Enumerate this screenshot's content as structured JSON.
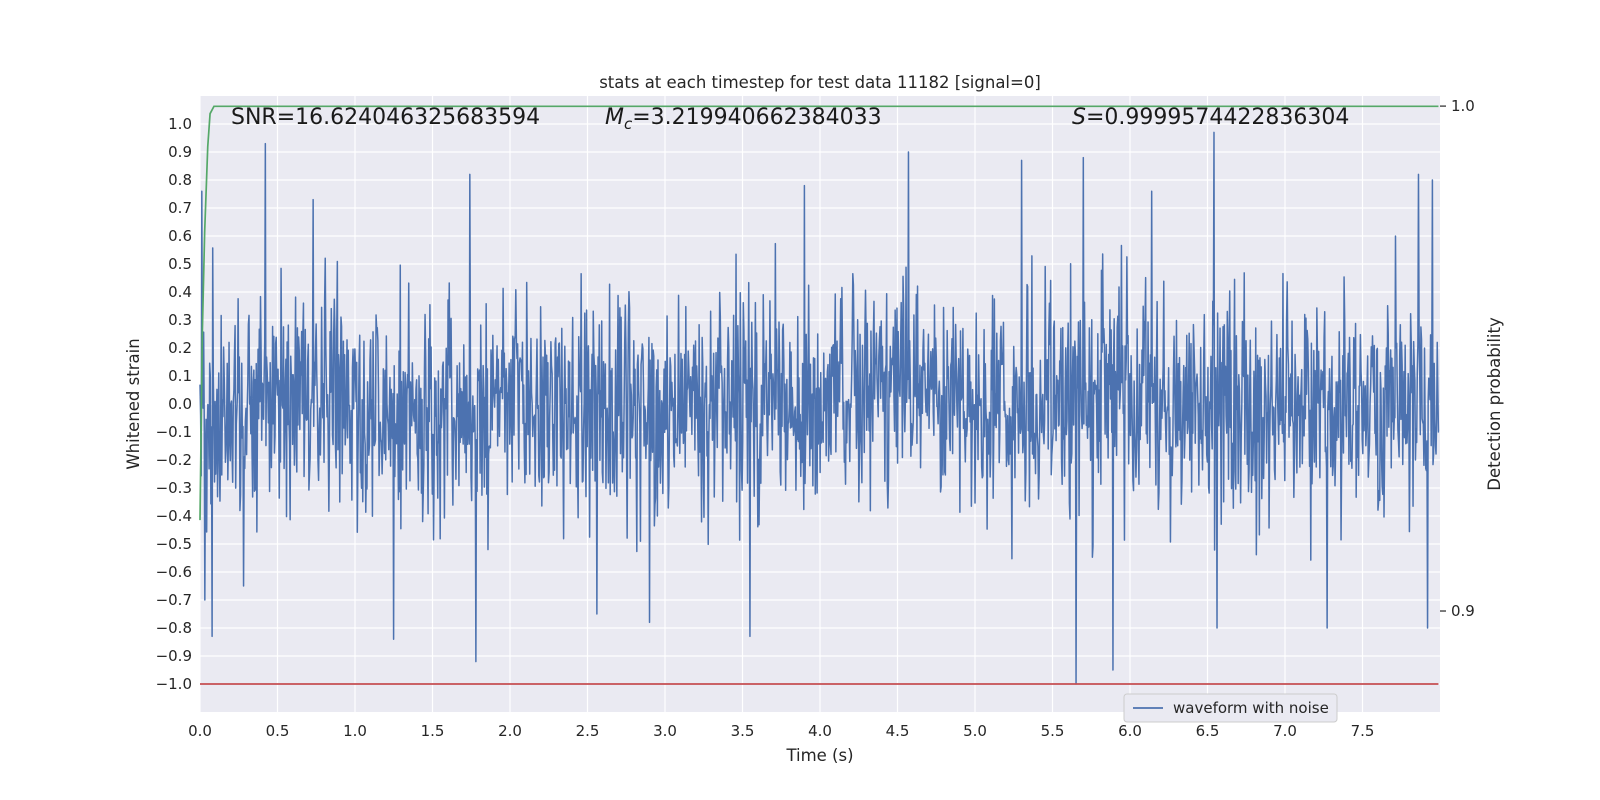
{
  "chart_data": {
    "type": "line",
    "title": "stats at each timestep for test data 11182 [signal=0]",
    "xlabel": "Time (s)",
    "ylabel": "Whitened strain",
    "y2label": "Detection probability",
    "xlim": [
      0.0,
      8.0
    ],
    "ylim": [
      -1.1,
      1.1
    ],
    "y2lim": [
      0.88,
      1.002
    ],
    "x_ticks": [
      0.0,
      0.5,
      1.0,
      1.5,
      2.0,
      2.5,
      3.0,
      3.5,
      4.0,
      4.5,
      5.0,
      5.5,
      6.0,
      6.5,
      7.0,
      7.5
    ],
    "x_tick_labels": [
      "0.0",
      "0.5",
      "1.0",
      "1.5",
      "2.0",
      "2.5",
      "3.0",
      "3.5",
      "4.0",
      "4.5",
      "5.0",
      "5.5",
      "6.0",
      "6.5",
      "7.0",
      "7.5"
    ],
    "y_ticks": [
      1.0,
      0.9,
      0.8,
      0.7,
      0.6,
      0.5,
      0.4,
      0.3,
      0.2,
      0.1,
      0.0,
      -0.1,
      -0.2,
      -0.3,
      -0.4,
      -0.5,
      -0.6,
      -0.7,
      -0.8,
      -0.9,
      -1.0
    ],
    "y_tick_labels": [
      "1.0",
      "0.9",
      "0.8",
      "0.7",
      "0.6",
      "0.5",
      "0.4",
      "0.3",
      "0.2",
      "0.1",
      "0.0",
      "−0.1",
      "−0.2",
      "−0.3",
      "−0.4",
      "−0.5",
      "−0.6",
      "−0.7",
      "−0.8",
      "−0.9",
      "−1.0"
    ],
    "y2_ticks": [
      1.0,
      0.9
    ],
    "y2_tick_labels": [
      "1.0",
      "0.9"
    ],
    "grid": true,
    "legend_position": "lower-right",
    "annotations": {
      "snr": "SNR=16.624046325683594",
      "mc_symbol": "M",
      "mc_sub": "c",
      "mc_value": "=3.219940662384033",
      "s_symbol": "S",
      "s_value": "=0.9999574422836304"
    },
    "series": [
      {
        "name": "waveform with noise",
        "axis": "left",
        "color": "#4c72b0",
        "kind": "noise",
        "t_start": 0.0,
        "t_end": 7.99,
        "n_samples": 2048,
        "sigma": 0.2,
        "peaks": [
          [
            0.01,
            0.76
          ],
          [
            0.03,
            -0.7
          ],
          [
            0.08,
            -0.83
          ],
          [
            0.42,
            0.93
          ],
          [
            0.73,
            0.73
          ],
          [
            1.25,
            -0.84
          ],
          [
            1.74,
            0.82
          ],
          [
            1.78,
            -0.92
          ],
          [
            2.56,
            -0.75
          ],
          [
            3.55,
            -0.83
          ],
          [
            4.57,
            0.9
          ],
          [
            5.3,
            0.87
          ],
          [
            5.65,
            -1.0
          ],
          [
            5.7,
            0.88
          ],
          [
            5.89,
            -0.95
          ],
          [
            6.14,
            0.76
          ],
          [
            6.54,
            0.97
          ],
          [
            6.56,
            -0.8
          ],
          [
            7.27,
            -0.8
          ],
          [
            7.86,
            0.82
          ],
          [
            7.92,
            -0.8
          ],
          [
            7.95,
            0.8
          ],
          [
            0.28,
            -0.65
          ],
          [
            2.9,
            -0.78
          ],
          [
            3.9,
            0.78
          ]
        ]
      },
      {
        "name": "",
        "axis": "right",
        "color": "#55a868",
        "x": [
          0.0,
          0.015,
          0.03,
          0.05,
          0.065,
          0.09,
          7.99
        ],
        "y": [
          0.918,
          0.955,
          0.975,
          0.992,
          0.9985,
          0.99996,
          0.99996
        ]
      },
      {
        "name": "",
        "axis": "left",
        "color": "#c44e52",
        "x": [
          0.0,
          7.99
        ],
        "y": [
          -1.0,
          -1.0
        ]
      }
    ]
  }
}
